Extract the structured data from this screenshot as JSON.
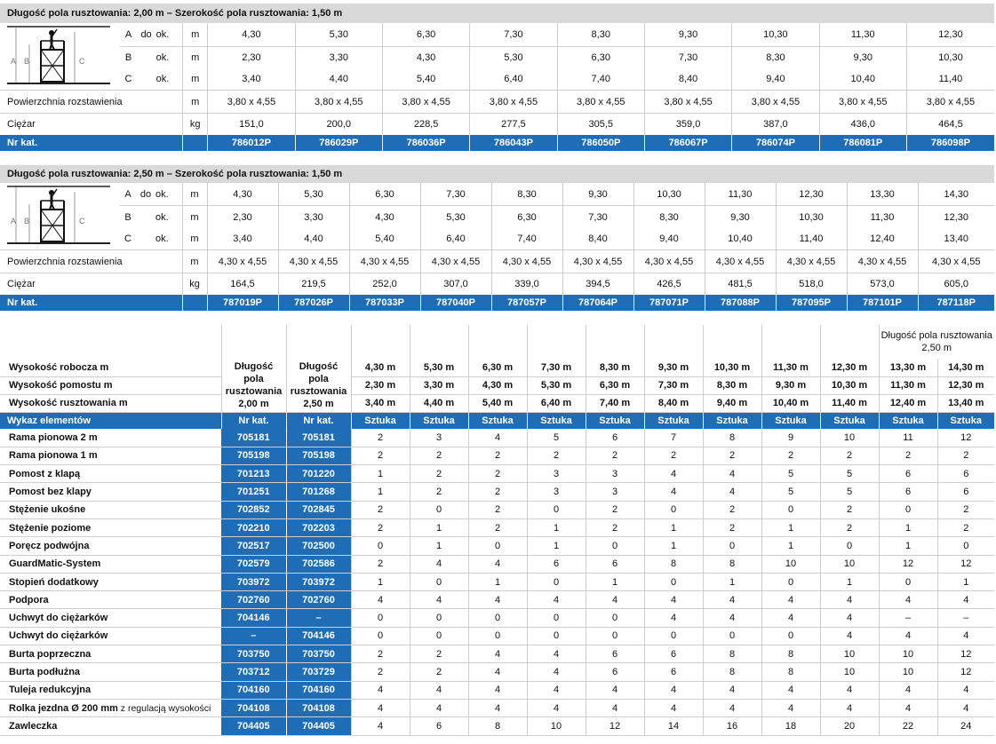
{
  "table1": {
    "title": "Długość pola rusztowania: 2,00 m – Szerokość pola rusztowania: 1,50 m",
    "dims": [
      {
        "label": "A",
        "mid": "do",
        "abbr": "ok.",
        "unit": "m",
        "values": [
          "4,30",
          "5,30",
          "6,30",
          "7,30",
          "8,30",
          "9,30",
          "10,30",
          "11,30",
          "12,30"
        ]
      },
      {
        "label": "B",
        "mid": "",
        "abbr": "ok.",
        "unit": "m",
        "values": [
          "2,30",
          "3,30",
          "4,30",
          "5,30",
          "6,30",
          "7,30",
          "8,30",
          "9,30",
          "10,30"
        ]
      },
      {
        "label": "C",
        "mid": "",
        "abbr": "ok.",
        "unit": "m",
        "values": [
          "3,40",
          "4,40",
          "5,40",
          "6,40",
          "7,40",
          "8,40",
          "9,40",
          "10,40",
          "11,40"
        ]
      }
    ],
    "area": {
      "label": "Powierzchnia rozstawienia",
      "unit": "m",
      "values": [
        "3,80 x 4,55",
        "3,80 x 4,55",
        "3,80 x 4,55",
        "3,80 x 4,55",
        "3,80 x 4,55",
        "3,80 x 4,55",
        "3,80 x 4,55",
        "3,80 x 4,55",
        "3,80 x 4,55"
      ]
    },
    "weight": {
      "label": "Ciężar",
      "unit": "kg",
      "values": [
        "151,0",
        "200,0",
        "228,5",
        "277,5",
        "305,5",
        "359,0",
        "387,0",
        "436,0",
        "464,5"
      ]
    },
    "catalog": {
      "label": "Nr kat.",
      "values": [
        "786012P",
        "786029P",
        "786036P",
        "786043P",
        "786050P",
        "786067P",
        "786074P",
        "786081P",
        "786098P"
      ]
    }
  },
  "table2": {
    "title": "Długość pola rusztowania: 2,50 m – Szerokość pola rusztowania: 1,50 m",
    "dims": [
      {
        "label": "A",
        "mid": "do",
        "abbr": "ok.",
        "unit": "m",
        "values": [
          "4,30",
          "5,30",
          "6,30",
          "7,30",
          "8,30",
          "9,30",
          "10,30",
          "11,30",
          "12,30",
          "13,30",
          "14,30"
        ]
      },
      {
        "label": "B",
        "mid": "",
        "abbr": "ok.",
        "unit": "m",
        "values": [
          "2,30",
          "3,30",
          "4,30",
          "5,30",
          "6,30",
          "7,30",
          "8,30",
          "9,30",
          "10,30",
          "11,30",
          "12,30"
        ]
      },
      {
        "label": "C",
        "mid": "",
        "abbr": "ok.",
        "unit": "m",
        "values": [
          "3,40",
          "4,40",
          "5,40",
          "6,40",
          "7,40",
          "8,40",
          "9,40",
          "10,40",
          "11,40",
          "12,40",
          "13,40"
        ]
      }
    ],
    "area": {
      "label": "Powierzchnia rozstawienia",
      "unit": "m",
      "values": [
        "4,30 x 4,55",
        "4,30 x 4,55",
        "4,30 x 4,55",
        "4,30 x 4,55",
        "4,30 x 4,55",
        "4,30 x 4,55",
        "4,30 x 4,55",
        "4,30 x 4,55",
        "4,30 x 4,55",
        "4,30 x 4,55",
        "4,30 x 4,55"
      ]
    },
    "weight": {
      "label": "Ciężar",
      "unit": "kg",
      "values": [
        "164,5",
        "219,5",
        "252,0",
        "307,0",
        "339,0",
        "394,5",
        "426,5",
        "481,5",
        "518,0",
        "573,0",
        "605,0"
      ]
    },
    "catalog": {
      "label": "Nr kat.",
      "values": [
        "787019P",
        "787026P",
        "787033P",
        "787040P",
        "787057P",
        "787064P",
        "787071P",
        "787088P",
        "787095P",
        "787101P",
        "787118P"
      ]
    }
  },
  "diagram": {
    "labels": [
      "A",
      "B",
      "C"
    ]
  },
  "table3": {
    "note": "Długość pola rusztowania 2,50 m",
    "rows_head": [
      {
        "label": "Wysokość robocza m",
        "values": [
          "4,30 m",
          "5,30 m",
          "6,30 m",
          "7,30 m",
          "8,30 m",
          "9,30 m",
          "10,30 m",
          "11,30 m",
          "12,30 m",
          "13,30 m",
          "14,30 m"
        ]
      },
      {
        "label": "Wysokość pomostu m",
        "values": [
          "2,30 m",
          "3,30 m",
          "4,30 m",
          "5,30 m",
          "6,30 m",
          "7,30 m",
          "8,30 m",
          "9,30 m",
          "10,30 m",
          "11,30 m",
          "12,30 m"
        ]
      },
      {
        "label": "Wysokość rusztowania m",
        "values": [
          "3,40 m",
          "4,40 m",
          "5,40 m",
          "6,40 m",
          "7,40 m",
          "8,40 m",
          "9,40 m",
          "10,40 m",
          "11,40 m",
          "12,40 m",
          "13,40 m"
        ]
      }
    ],
    "col_200": "Długość pola rusztowania 2,00 m",
    "col_250": "Długość pola rusztowania 2,50 m",
    "list_label": "Wykaz elementów",
    "nr_kat": "Nr kat.",
    "unit": "Sztuka",
    "items": [
      {
        "name": "Rama pionowa 2 m",
        "k1": "705181",
        "k2": "705181",
        "q": [
          "2",
          "3",
          "4",
          "5",
          "6",
          "7",
          "8",
          "9",
          "10",
          "11",
          "12"
        ]
      },
      {
        "name": "Rama pionowa 1 m",
        "k1": "705198",
        "k2": "705198",
        "q": [
          "2",
          "2",
          "2",
          "2",
          "2",
          "2",
          "2",
          "2",
          "2",
          "2",
          "2"
        ]
      },
      {
        "name": "Pomost z klapą",
        "k1": "701213",
        "k2": "701220",
        "q": [
          "1",
          "2",
          "2",
          "3",
          "3",
          "4",
          "4",
          "5",
          "5",
          "6",
          "6"
        ]
      },
      {
        "name": "Pomost bez klapy",
        "k1": "701251",
        "k2": "701268",
        "q": [
          "1",
          "2",
          "2",
          "3",
          "3",
          "4",
          "4",
          "5",
          "5",
          "6",
          "6"
        ]
      },
      {
        "name": "Stężenie ukośne",
        "k1": "702852",
        "k2": "702845",
        "q": [
          "2",
          "0",
          "2",
          "0",
          "2",
          "0",
          "2",
          "0",
          "2",
          "0",
          "2"
        ]
      },
      {
        "name": "Stężenie poziome",
        "k1": "702210",
        "k2": "702203",
        "q": [
          "2",
          "1",
          "2",
          "1",
          "2",
          "1",
          "2",
          "1",
          "2",
          "1",
          "2"
        ]
      },
      {
        "name": "Poręcz podwójna",
        "k1": "702517",
        "k2": "702500",
        "q": [
          "0",
          "1",
          "0",
          "1",
          "0",
          "1",
          "0",
          "1",
          "0",
          "1",
          "0"
        ]
      },
      {
        "name": "GuardMatic-System",
        "k1": "702579",
        "k2": "702586",
        "q": [
          "2",
          "4",
          "4",
          "6",
          "6",
          "8",
          "8",
          "10",
          "10",
          "12",
          "12"
        ]
      },
      {
        "name": "Stopień dodatkowy",
        "k1": "703972",
        "k2": "703972",
        "q": [
          "1",
          "0",
          "1",
          "0",
          "1",
          "0",
          "1",
          "0",
          "1",
          "0",
          "1"
        ]
      },
      {
        "name": "Podpora",
        "k1": "702760",
        "k2": "702760",
        "q": [
          "4",
          "4",
          "4",
          "4",
          "4",
          "4",
          "4",
          "4",
          "4",
          "4",
          "4"
        ]
      },
      {
        "name": "Uchwyt do ciężarków",
        "k1": "704146",
        "k2": "–",
        "q": [
          "0",
          "0",
          "0",
          "0",
          "0",
          "4",
          "4",
          "4",
          "4",
          "–",
          "–"
        ]
      },
      {
        "name": "Uchwyt do ciężarków",
        "k1": "–",
        "k2": "704146",
        "q": [
          "0",
          "0",
          "0",
          "0",
          "0",
          "0",
          "0",
          "0",
          "4",
          "4",
          "4"
        ]
      },
      {
        "name": "Burta poprzeczna",
        "k1": "703750",
        "k2": "703750",
        "q": [
          "2",
          "2",
          "4",
          "4",
          "6",
          "6",
          "8",
          "8",
          "10",
          "10",
          "12"
        ]
      },
      {
        "name": "Burta podłużna",
        "k1": "703712",
        "k2": "703729",
        "q": [
          "2",
          "2",
          "4",
          "4",
          "6",
          "6",
          "8",
          "8",
          "10",
          "10",
          "12"
        ]
      },
      {
        "name": "Tuleja redukcyjna",
        "k1": "704160",
        "k2": "704160",
        "q": [
          "4",
          "4",
          "4",
          "4",
          "4",
          "4",
          "4",
          "4",
          "4",
          "4",
          "4"
        ]
      },
      {
        "name": "Rolka jezdna Ø 200 mm",
        "name_suffix": "z regulacją wysokości",
        "k1": "704108",
        "k2": "704108",
        "q": [
          "4",
          "4",
          "4",
          "4",
          "4",
          "4",
          "4",
          "4",
          "4",
          "4",
          "4"
        ]
      },
      {
        "name": "Zawleczka",
        "k1": "704405",
        "k2": "704405",
        "q": [
          "4",
          "6",
          "8",
          "10",
          "12",
          "14",
          "16",
          "18",
          "20",
          "22",
          "24"
        ]
      }
    ]
  }
}
